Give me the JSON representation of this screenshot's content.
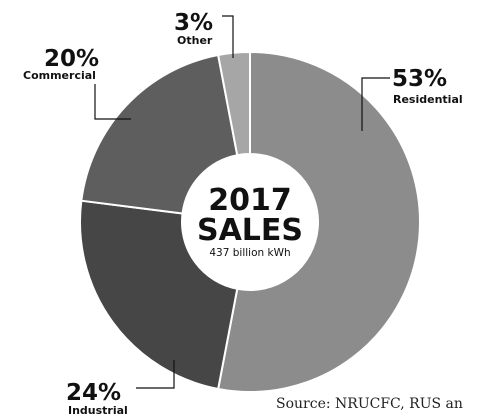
{
  "chart_data": {
    "type": "pie",
    "style": "donut",
    "title_line1": "2017",
    "title_line2": "SALES",
    "subtitle": "437 billion kWh",
    "categories": [
      "Residential",
      "Industrial",
      "Commercial",
      "Other"
    ],
    "values": [
      53,
      24,
      20,
      3
    ],
    "value_labels": [
      "53%",
      "24%",
      "20%",
      "3%"
    ],
    "colors": [
      "#8c8c8c",
      "#464646",
      "#5e5e5e",
      "#a6a6a6"
    ]
  },
  "source": "Source: NRUCFC, RUS an"
}
